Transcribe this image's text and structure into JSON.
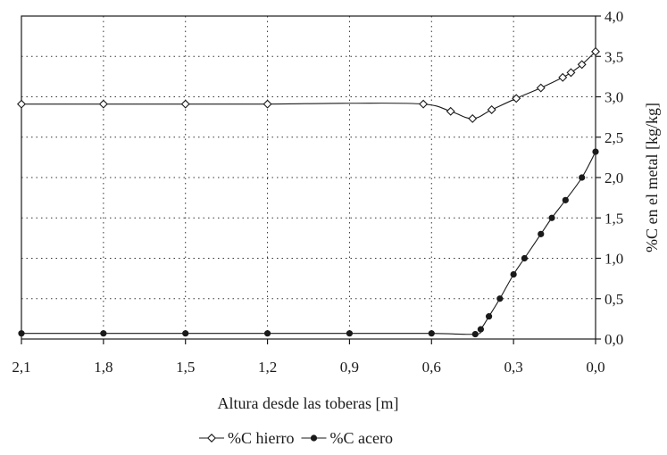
{
  "chart_data": {
    "type": "line",
    "title": "",
    "xlabel": "Altura desde las toberas [m]",
    "ylabel": "%C en el metal [kg/kg]",
    "xlim": [
      2.1,
      0.0
    ],
    "ylim": [
      0.0,
      4.0
    ],
    "x_reversed": true,
    "y_axis_side": "right",
    "grid": true,
    "legend_position": "bottom-center",
    "x_ticks": [
      {
        "value": 2.1,
        "label": "2,1"
      },
      {
        "value": 1.8,
        "label": "1,8"
      },
      {
        "value": 1.5,
        "label": "1,5"
      },
      {
        "value": 1.2,
        "label": "1,2"
      },
      {
        "value": 0.9,
        "label": "0,9"
      },
      {
        "value": 0.6,
        "label": "0,6"
      },
      {
        "value": 0.3,
        "label": "0,3"
      },
      {
        "value": 0.0,
        "label": "0,0"
      }
    ],
    "y_ticks": [
      {
        "value": 0.0,
        "label": "0,0"
      },
      {
        "value": 0.5,
        "label": "0,5"
      },
      {
        "value": 1.0,
        "label": "1,0"
      },
      {
        "value": 1.5,
        "label": "1,5"
      },
      {
        "value": 2.0,
        "label": "2,0"
      },
      {
        "value": 2.5,
        "label": "2,5"
      },
      {
        "value": 3.0,
        "label": "3,0"
      },
      {
        "value": 3.5,
        "label": "3,5"
      },
      {
        "value": 4.0,
        "label": "4,0"
      }
    ],
    "series": [
      {
        "name": "%C hierro",
        "marker": "diamond-open",
        "color": "#1a1a1a",
        "points": [
          [
            2.1,
            2.91
          ],
          [
            1.8,
            2.91
          ],
          [
            1.5,
            2.91
          ],
          [
            1.2,
            2.91
          ],
          [
            0.63,
            2.91
          ],
          [
            0.53,
            2.82
          ],
          [
            0.45,
            2.73
          ],
          [
            0.38,
            2.84
          ],
          [
            0.29,
            2.98
          ],
          [
            0.2,
            3.11
          ],
          [
            0.12,
            3.24
          ],
          [
            0.09,
            3.3
          ],
          [
            0.05,
            3.4
          ],
          [
            0.0,
            3.56
          ]
        ],
        "curve_points": [
          [
            2.1,
            2.91
          ],
          [
            1.8,
            2.91
          ],
          [
            1.5,
            2.91
          ],
          [
            1.2,
            2.91
          ],
          [
            0.9,
            2.92
          ],
          [
            0.63,
            2.91
          ],
          [
            0.53,
            2.82
          ],
          [
            0.45,
            2.73
          ],
          [
            0.38,
            2.84
          ],
          [
            0.29,
            2.98
          ],
          [
            0.2,
            3.11
          ],
          [
            0.12,
            3.24
          ],
          [
            0.09,
            3.3
          ],
          [
            0.05,
            3.4
          ],
          [
            0.0,
            3.56
          ]
        ]
      },
      {
        "name": "%C acero",
        "marker": "circle-filled",
        "color": "#1a1a1a",
        "points": [
          [
            2.1,
            0.07
          ],
          [
            1.8,
            0.07
          ],
          [
            1.5,
            0.07
          ],
          [
            1.2,
            0.07
          ],
          [
            0.9,
            0.07
          ],
          [
            0.6,
            0.07
          ],
          [
            0.44,
            0.06
          ],
          [
            0.42,
            0.12
          ],
          [
            0.39,
            0.28
          ],
          [
            0.35,
            0.5
          ],
          [
            0.3,
            0.8
          ],
          [
            0.26,
            1.0
          ],
          [
            0.2,
            1.3
          ],
          [
            0.16,
            1.5
          ],
          [
            0.11,
            1.72
          ],
          [
            0.05,
            2.0
          ],
          [
            0.0,
            2.32
          ]
        ]
      }
    ]
  }
}
